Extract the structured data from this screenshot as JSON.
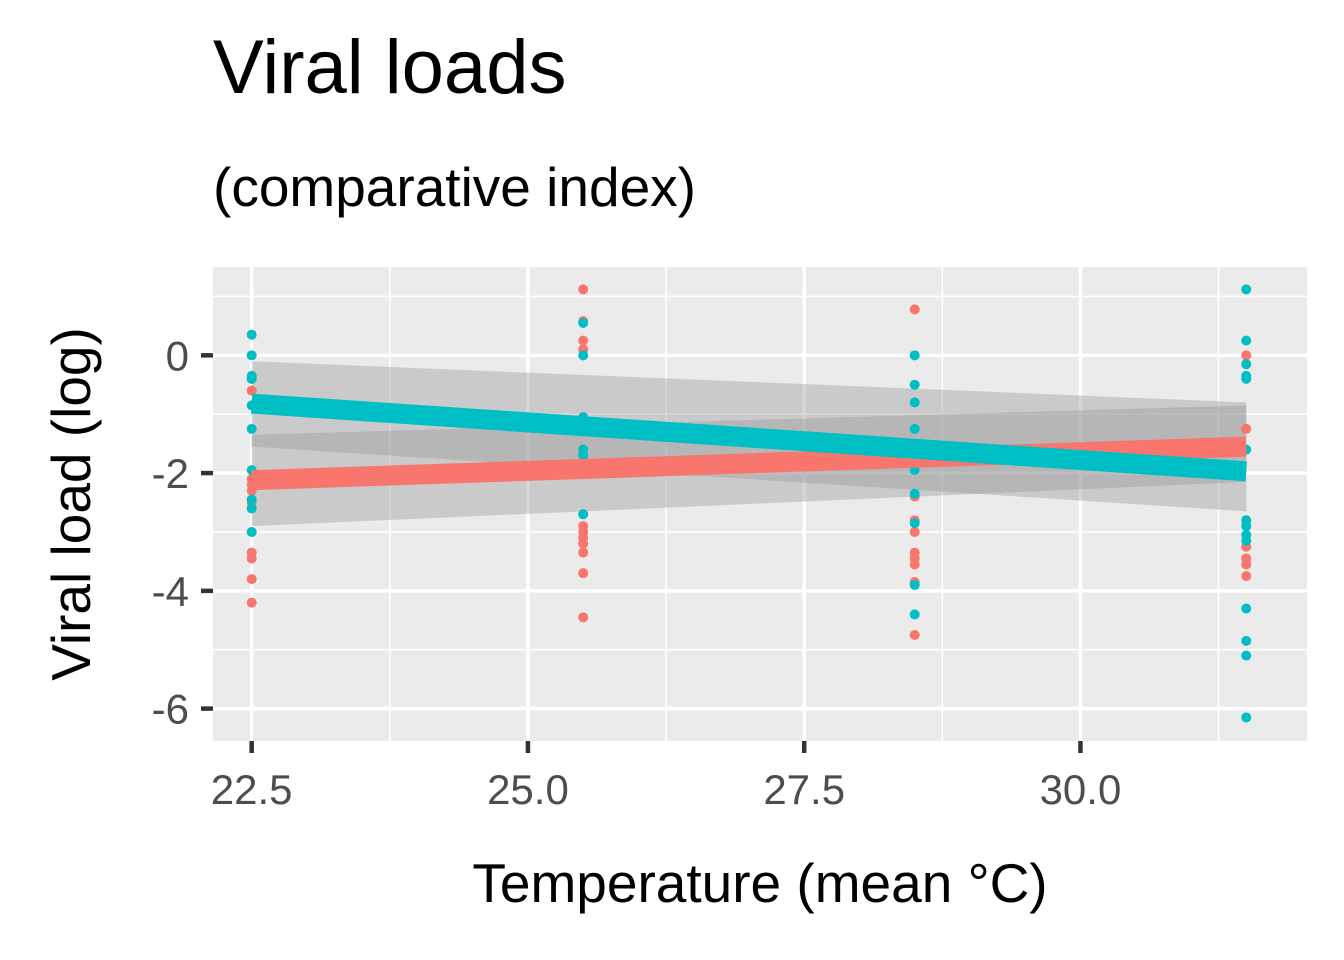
{
  "chart_data": {
    "type": "scatter",
    "title": "Viral loads",
    "subtitle": "(comparative index)",
    "xlabel": "Temperature (mean °C)",
    "ylabel": "Viral load (log)",
    "xlim": [
      22.15,
      32.05
    ],
    "ylim": [
      -6.55,
      1.5
    ],
    "xticks": [
      22.5,
      25.0,
      27.5,
      30.0
    ],
    "xtick_labels": [
      "22.5",
      "25.0",
      "27.5",
      "30.0"
    ],
    "yticks": [
      0,
      -2,
      -4,
      -6
    ],
    "ytick_labels": [
      "0",
      "-2",
      "-4",
      "-6"
    ],
    "grid": true,
    "legend": "none",
    "series": [
      {
        "color": "#F8766D",
        "points": [
          [
            22.5,
            -0.4
          ],
          [
            22.5,
            -0.6
          ],
          [
            22.5,
            -2.1
          ],
          [
            22.5,
            -2.2
          ],
          [
            22.5,
            -2.3
          ],
          [
            22.5,
            -2.5
          ],
          [
            22.5,
            -3.35
          ],
          [
            22.5,
            -3.45
          ],
          [
            22.5,
            -3.8
          ],
          [
            22.5,
            -4.2
          ],
          [
            25.5,
            1.12
          ],
          [
            25.5,
            0.58
          ],
          [
            25.5,
            0.25
          ],
          [
            25.5,
            0.1
          ],
          [
            25.5,
            -2.9
          ],
          [
            25.5,
            -3.0
          ],
          [
            25.5,
            -3.1
          ],
          [
            25.5,
            -3.2
          ],
          [
            25.5,
            -3.35
          ],
          [
            25.5,
            -3.7
          ],
          [
            25.5,
            -4.45
          ],
          [
            28.5,
            0.78
          ],
          [
            28.5,
            -2.4
          ],
          [
            28.5,
            -2.8
          ],
          [
            28.5,
            -3.0
          ],
          [
            28.5,
            -3.35
          ],
          [
            28.5,
            -3.45
          ],
          [
            28.5,
            -3.55
          ],
          [
            28.5,
            -3.85
          ],
          [
            28.5,
            -4.75
          ],
          [
            31.5,
            0.0
          ],
          [
            31.5,
            -1.25
          ],
          [
            31.5,
            -3.25
          ],
          [
            31.5,
            -3.45
          ],
          [
            31.5,
            -3.55
          ],
          [
            31.5,
            -3.75
          ]
        ],
        "fit": {
          "x": [
            22.5,
            31.5
          ],
          "y": [
            -2.12,
            -1.55
          ]
        },
        "ci_lower": [
          -2.9,
          -2.15
        ],
        "ci_upper": [
          -1.35,
          -0.85
        ]
      },
      {
        "color": "#00BFC4",
        "points": [
          [
            22.5,
            0.35
          ],
          [
            22.5,
            0.0
          ],
          [
            22.5,
            -0.35
          ],
          [
            22.5,
            -0.4
          ],
          [
            22.5,
            -0.85
          ],
          [
            22.5,
            -1.25
          ],
          [
            22.5,
            -1.95
          ],
          [
            22.5,
            -2.45
          ],
          [
            22.5,
            -2.6
          ],
          [
            22.5,
            -3.0
          ],
          [
            25.5,
            0.55
          ],
          [
            25.5,
            0.0
          ],
          [
            25.5,
            -1.05
          ],
          [
            25.5,
            -1.6
          ],
          [
            25.5,
            -1.7
          ],
          [
            25.5,
            -2.7
          ],
          [
            28.5,
            0.0
          ],
          [
            28.5,
            -0.5
          ],
          [
            28.5,
            -0.8
          ],
          [
            28.5,
            -1.25
          ],
          [
            28.5,
            -1.95
          ],
          [
            28.5,
            -2.35
          ],
          [
            28.5,
            -2.85
          ],
          [
            28.5,
            -3.9
          ],
          [
            28.5,
            -4.4
          ],
          [
            31.5,
            1.12
          ],
          [
            31.5,
            0.25
          ],
          [
            31.5,
            -0.15
          ],
          [
            31.5,
            -0.35
          ],
          [
            31.5,
            -0.4
          ],
          [
            31.5,
            -1.6
          ],
          [
            31.5,
            -2.8
          ],
          [
            31.5,
            -2.9
          ],
          [
            31.5,
            -3.05
          ],
          [
            31.5,
            -3.15
          ],
          [
            31.5,
            -4.3
          ],
          [
            31.5,
            -4.85
          ],
          [
            31.5,
            -5.1
          ],
          [
            31.5,
            -6.15
          ]
        ],
        "fit": {
          "x": [
            22.5,
            31.5
          ],
          "y": [
            -0.82,
            -1.97
          ]
        },
        "ci_lower": [
          -1.55,
          -2.65
        ],
        "ci_upper": [
          -0.1,
          -0.8
        ]
      }
    ]
  }
}
